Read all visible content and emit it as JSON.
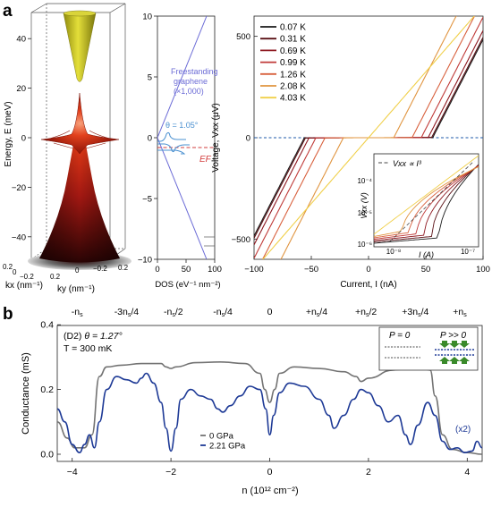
{
  "figure": {
    "panel_a_label": "a",
    "panel_b_label": "b"
  },
  "chart_data": [
    {
      "type": "area",
      "panel": "a-left",
      "ylabel": "Energy, E (meV)",
      "kx_label": "kx (nm⁻¹)",
      "ky_label": "ky (nm⁻¹)",
      "ylim": [
        -45,
        45
      ],
      "y_ticks": [
        "40",
        "20",
        "0",
        "−20",
        "−40"
      ],
      "kx_ticks": [
        "0.2",
        "0",
        "−0.2"
      ],
      "ky_ticks": [
        "0.2",
        "0",
        "−0.2",
        "0.2"
      ],
      "colors": {
        "upper_band": "#c7c218",
        "flat_band": "#e03a1c",
        "lower_band": "#7a1010"
      }
    },
    {
      "type": "line",
      "panel": "a-middle",
      "xlabel": "DOS (eV⁻¹ nm⁻²)",
      "xlim": [
        0,
        100
      ],
      "ylim": [
        -10,
        10
      ],
      "x_ticks": [
        "0",
        "50",
        "100"
      ],
      "y_ticks": [
        "10",
        "5",
        "0",
        "−5",
        "−10"
      ],
      "annotations": {
        "freestanding": [
          "Freestanding",
          "graphene",
          "(×1,000)"
        ],
        "theta": "θ = 1.05°",
        "ef": "EF"
      },
      "fermi_level": -0.8,
      "colors": {
        "freestanding": "#6b6bd6",
        "twisted": "#4a90d0",
        "ef": "#d23c3c"
      }
    },
    {
      "type": "line",
      "panel": "a-right",
      "xlabel": "Current, I (nA)",
      "ylabel": "Voltage, Vxx (μV)",
      "xlim": [
        -100,
        100
      ],
      "ylim": [
        -600,
        600
      ],
      "x_ticks": [
        "−100",
        "−50",
        "0",
        "50",
        "100"
      ],
      "y_ticks": [
        "500",
        "0",
        "−500"
      ],
      "series": [
        {
          "name": "0.07 K",
          "color": "#1a1a1a",
          "ic": 56
        },
        {
          "name": "0.31 K",
          "color": "#5a1015",
          "ic": 55
        },
        {
          "name": "0.69 K",
          "color": "#8e1820",
          "ic": 52
        },
        {
          "name": "0.99 K",
          "color": "#c03a38",
          "ic": 46
        },
        {
          "name": "1.26 K",
          "color": "#d8603d",
          "ic": 38
        },
        {
          "name": "2.08 K",
          "color": "#e0943f",
          "ic": 22
        },
        {
          "name": "4.03 K",
          "color": "#f0cf48",
          "ic": 0
        }
      ],
      "inset": {
        "xlabel": "I (A)",
        "ylabel": "Vxx (V)",
        "x_ticks": [
          "10⁻⁸",
          "10⁻⁷"
        ],
        "y_ticks": [
          "10⁻⁴",
          "10⁻⁵",
          "10⁻⁶"
        ],
        "annotation": "Vxx ∝ I³"
      }
    },
    {
      "type": "line",
      "panel": "b",
      "xlabel": "n (10¹² cm⁻²)",
      "ylabel": "Conductance (mS)",
      "xlim": [
        -4.3,
        4.3
      ],
      "ylim": [
        -0.02,
        0.4
      ],
      "x_ticks": [
        "−4",
        "−2",
        "0",
        "2",
        "4"
      ],
      "y_ticks": [
        "0.4",
        "0.2",
        "0.0"
      ],
      "top_labels": [
        "-ns",
        "-3ns/4",
        "-ns/2",
        "-ns/4",
        "0",
        "+ns/4",
        "+ns/2",
        "+3ns/4",
        "+ns"
      ],
      "annotations": {
        "device": "(D2)",
        "theta": "θ = 1.27°",
        "temperature": "T = 300 mK",
        "x2": "(x2)",
        "p0": "P = 0",
        "pbig": "P >> 0"
      },
      "series": [
        {
          "name": "0 GPa",
          "color": "#737373",
          "x": [
            -4.3,
            -4.1,
            -3.95,
            -3.75,
            -3.6,
            -3.45,
            -3.3,
            -3.0,
            -2.6,
            -2.2,
            -2.1,
            -2.0,
            -1.9,
            -1.5,
            -1.0,
            -0.5,
            -0.2,
            -0.1,
            0.0,
            0.1,
            0.2,
            0.5,
            1.0,
            1.5,
            1.75,
            1.85,
            2.0,
            2.5,
            3.0,
            3.25,
            3.35,
            3.5,
            3.7,
            4.0,
            4.3
          ],
          "values": [
            0.1,
            0.05,
            0.02,
            0.02,
            0.06,
            0.24,
            0.27,
            0.275,
            0.28,
            0.28,
            0.27,
            0.265,
            0.27,
            0.283,
            0.285,
            0.28,
            0.25,
            0.2,
            0.16,
            0.2,
            0.25,
            0.27,
            0.265,
            0.255,
            0.24,
            0.225,
            0.235,
            0.26,
            0.27,
            0.26,
            0.18,
            0.06,
            0.015,
            0.005,
            0.0
          ]
        },
        {
          "name": "2.21 GPa",
          "color": "#1e3a96",
          "x": [
            -4.3,
            -4.15,
            -4.0,
            -3.85,
            -3.75,
            -3.65,
            -3.55,
            -3.45,
            -3.3,
            -3.1,
            -2.9,
            -2.7,
            -2.6,
            -2.5,
            -2.35,
            -2.2,
            -2.1,
            -2.0,
            -1.9,
            -1.8,
            -1.6,
            -1.4,
            -1.2,
            -1.05,
            -0.95,
            -0.8,
            -0.6,
            -0.4,
            -0.2,
            -0.08,
            0.0,
            0.08,
            0.2,
            0.4,
            0.7,
            1.0,
            1.2,
            1.3,
            1.5,
            1.7,
            1.85,
            2.0,
            2.2,
            2.4,
            2.6,
            2.75,
            2.85,
            3.0,
            3.2,
            3.35,
            3.5,
            3.65,
            3.8,
            3.95,
            4.1,
            4.2,
            4.3
          ],
          "values": [
            0.14,
            0.1,
            0.03,
            0.005,
            0.03,
            0.06,
            0.02,
            0.1,
            0.2,
            0.24,
            0.23,
            0.22,
            0.235,
            0.25,
            0.22,
            0.16,
            0.08,
            0.01,
            0.08,
            0.17,
            0.2,
            0.18,
            0.17,
            0.14,
            0.13,
            0.15,
            0.18,
            0.21,
            0.2,
            0.14,
            0.06,
            0.12,
            0.19,
            0.22,
            0.21,
            0.17,
            0.12,
            0.08,
            0.12,
            0.17,
            0.2,
            0.19,
            0.15,
            0.1,
            0.12,
            0.06,
            0.03,
            0.09,
            0.16,
            0.12,
            0.04,
            0.015,
            0.02,
            0.005,
            0.01,
            0.04,
            0.02
          ]
        }
      ]
    }
  ]
}
